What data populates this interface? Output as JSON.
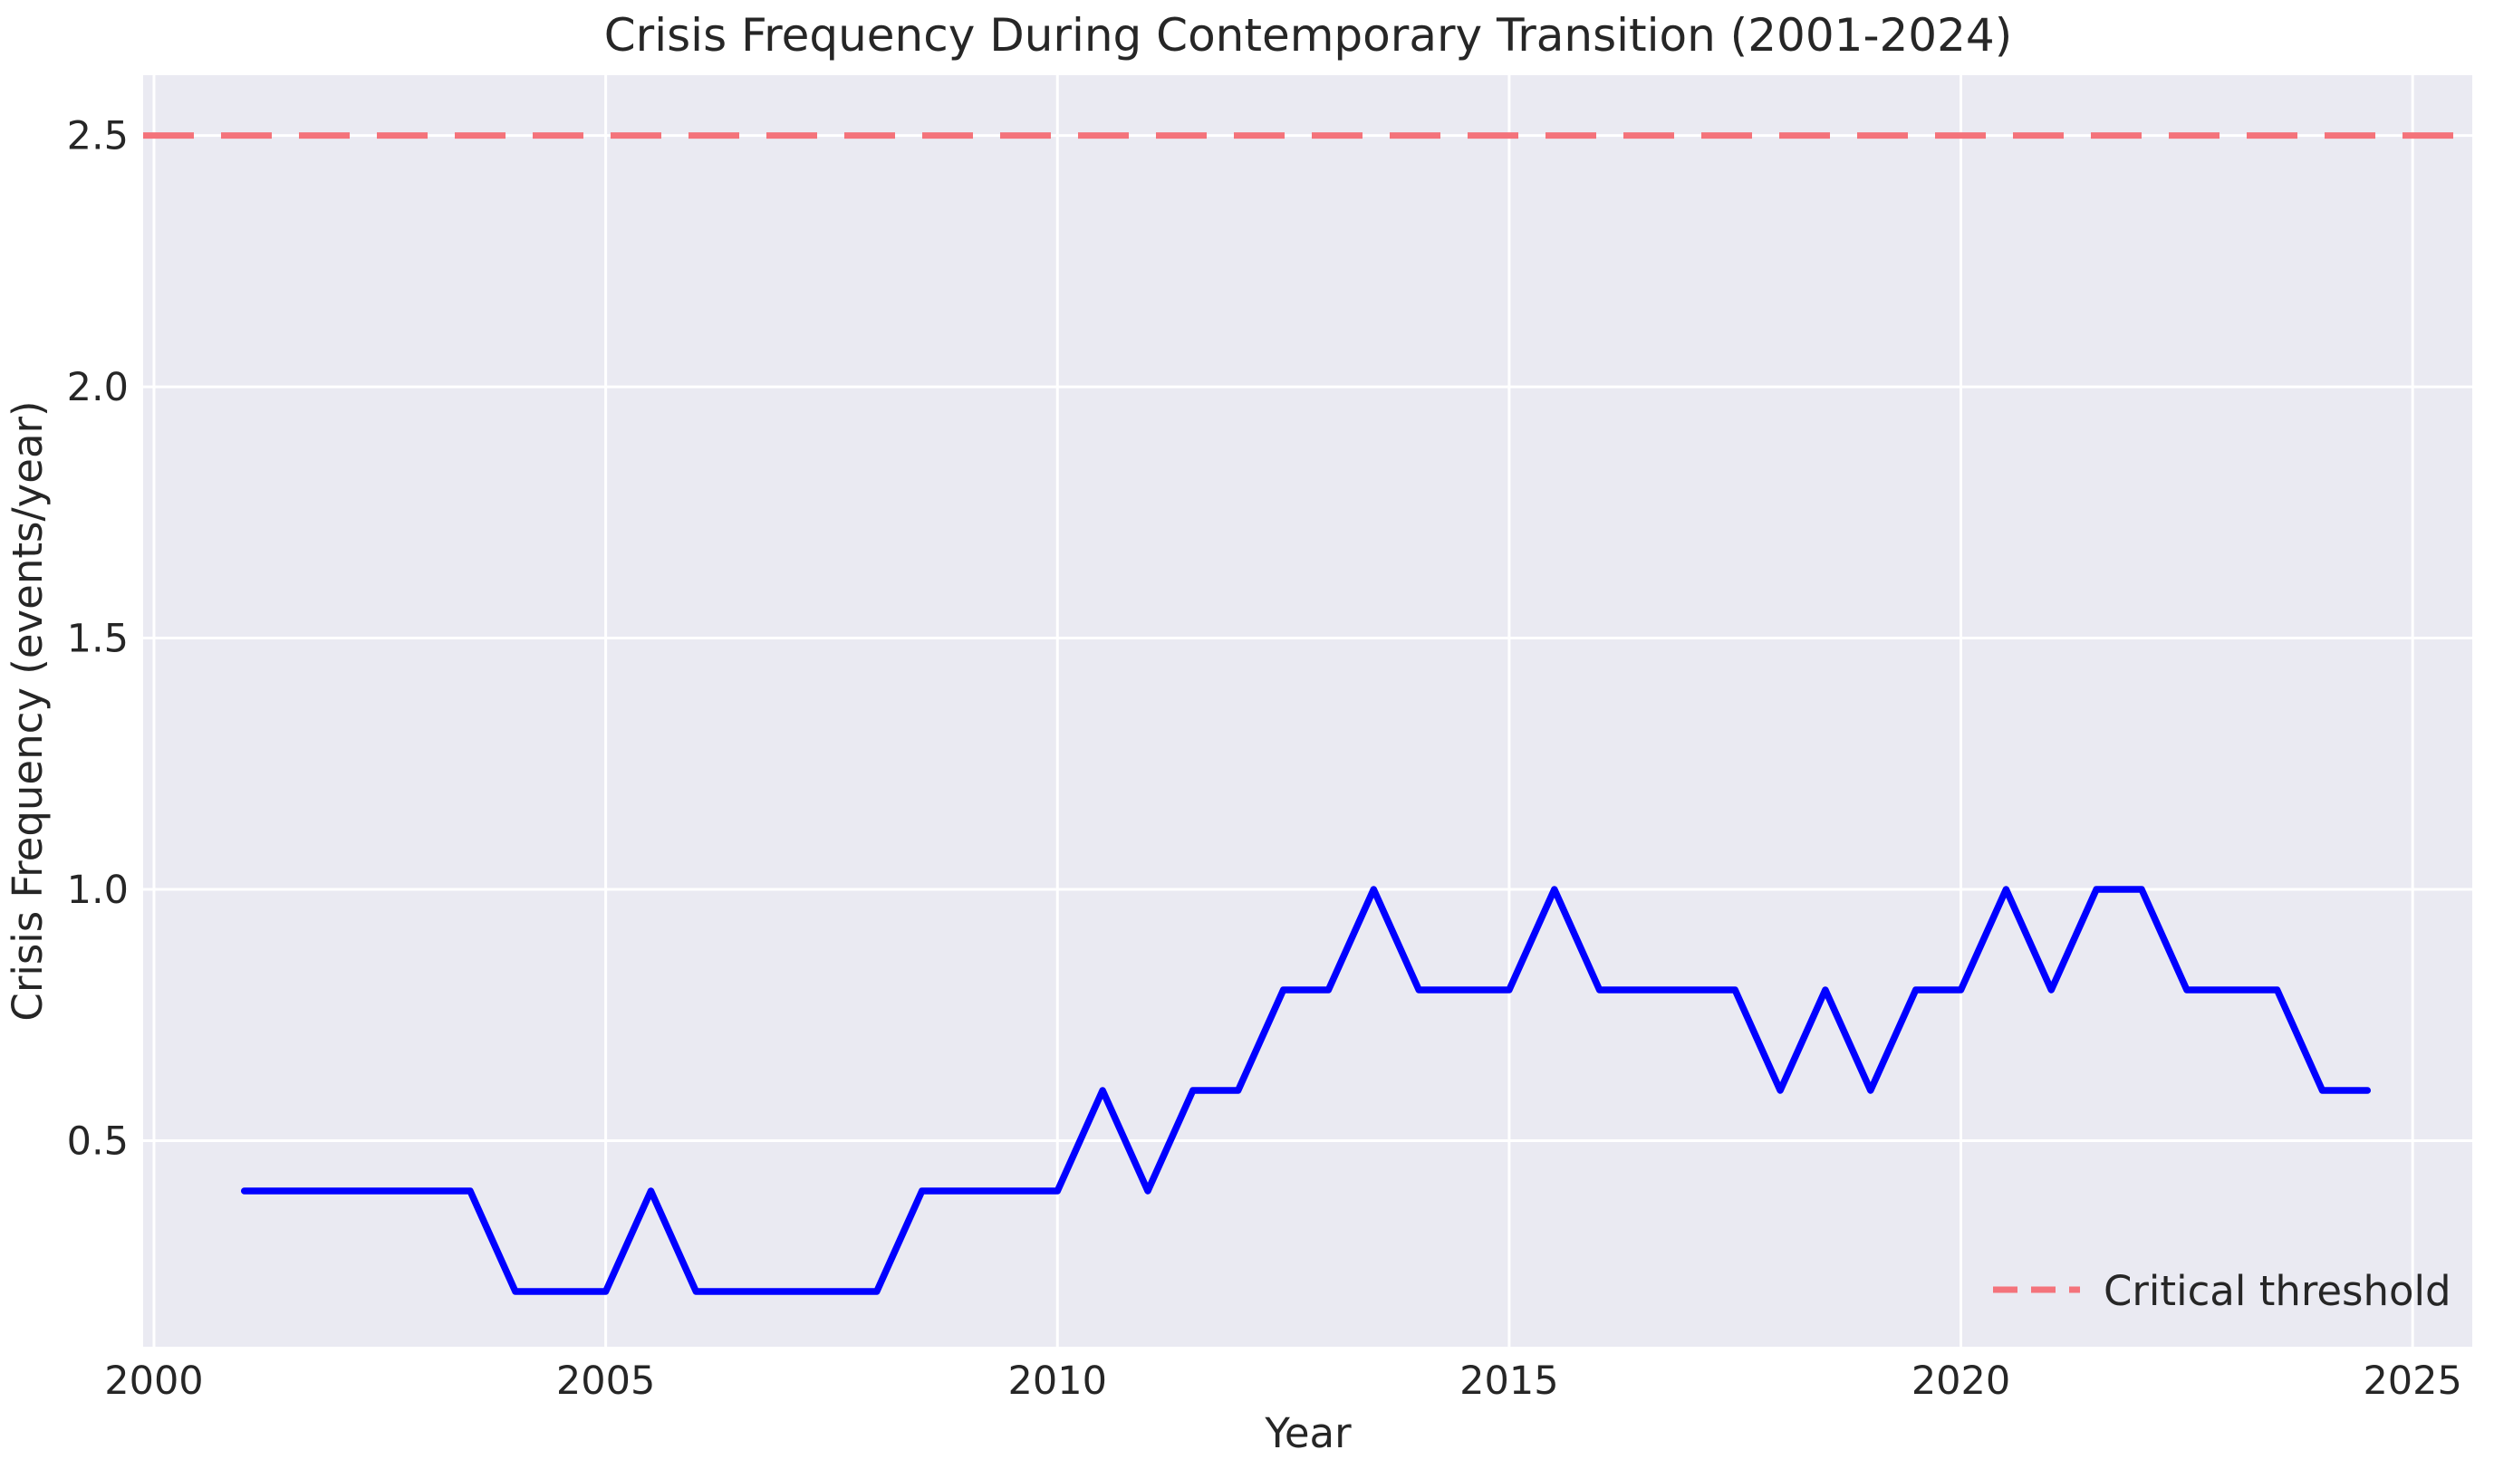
{
  "chart_data": {
    "type": "line",
    "title": "Crisis Frequency During Contemporary Transition (2001-2024)",
    "xlabel": "Year",
    "ylabel": "Crisis Frequency (events/year)",
    "x": [
      2001,
      2001.5,
      2002,
      2002.5,
      2003,
      2003.5,
      2004,
      2004.5,
      2005,
      2005.5,
      2006,
      2006.5,
      2007,
      2007.5,
      2008,
      2008.5,
      2009,
      2009.5,
      2010,
      2010.5,
      2011,
      2011.5,
      2012,
      2012.5,
      2013,
      2013.5,
      2014,
      2014.5,
      2015,
      2015.5,
      2016,
      2016.5,
      2017,
      2017.5,
      2018,
      2018.5,
      2019,
      2019.5,
      2020,
      2020.5,
      2021,
      2021.5,
      2022,
      2022.5,
      2023,
      2023.5,
      2024,
      2024.5
    ],
    "series": [
      {
        "name": "Crisis frequency",
        "color": "#0000ff",
        "values": [
          0.4,
          0.4,
          0.4,
          0.4,
          0.4,
          0.4,
          0.2,
          0.2,
          0.2,
          0.4,
          0.2,
          0.2,
          0.2,
          0.2,
          0.2,
          0.4,
          0.4,
          0.4,
          0.4,
          0.6,
          0.4,
          0.6,
          0.6,
          0.8,
          0.8,
          1.0,
          0.8,
          0.8,
          0.8,
          1.0,
          0.8,
          0.8,
          0.8,
          0.8,
          0.6,
          0.8,
          0.6,
          0.8,
          0.8,
          1.0,
          0.8,
          1.0,
          1.0,
          0.8,
          0.8,
          0.8,
          0.6,
          0.6
        ]
      }
    ],
    "annotations": [
      {
        "type": "hline",
        "y": 2.5,
        "label": "Critical threshold",
        "color": "#f4737b",
        "style": "dashed"
      }
    ],
    "x_ticks": [
      2000,
      2005,
      2010,
      2015,
      2020,
      2025
    ],
    "x_tick_labels": [
      "2000",
      "2005",
      "2010",
      "2015",
      "2020",
      "2025"
    ],
    "y_ticks": [
      0.5,
      1.0,
      1.5,
      2.0,
      2.5
    ],
    "y_tick_labels": [
      "0.5",
      "1.0",
      "1.5",
      "2.0",
      "2.5"
    ],
    "xlim": [
      1999.88,
      2025.66
    ],
    "ylim": [
      0.09,
      2.62
    ],
    "grid": true,
    "grid_color": "#ffffff",
    "plot_bg": "#eaeaf2",
    "legend_position": "lower right"
  }
}
